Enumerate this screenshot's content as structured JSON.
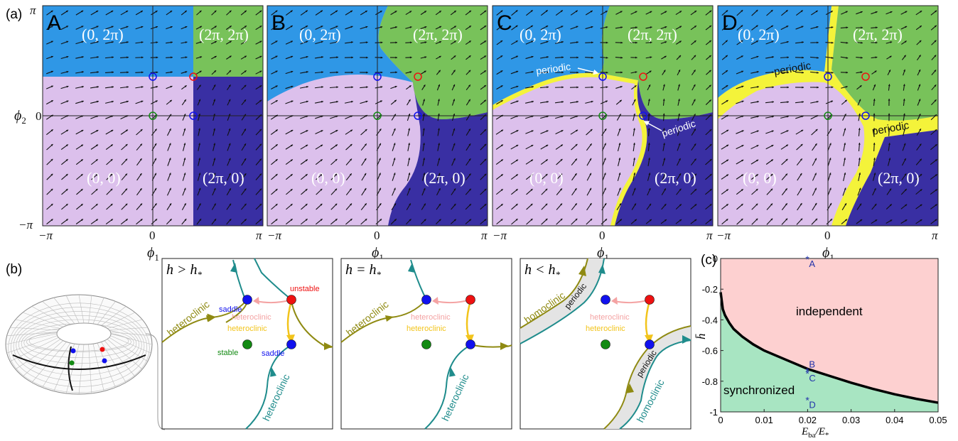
{
  "panel_labels": {
    "a": "(a)",
    "b": "(b)",
    "c": "(c)"
  },
  "panels_a": [
    {
      "letter": "A",
      "q_tl": "(0, 2π)",
      "q_tr": "(2π, 2π)",
      "q_bl": "(0, 0)",
      "q_br": "(2π, 0)",
      "periodic": []
    },
    {
      "letter": "B",
      "q_tl": "(0, 2π)",
      "q_tr": "(2π, 2π)",
      "q_bl": "(0, 0)",
      "q_br": "(2π, 0)",
      "periodic": []
    },
    {
      "letter": "C",
      "q_tl": "(0, 2π)",
      "q_tr": "(2π, 2π)",
      "q_bl": "(0, 0)",
      "q_br": "(2π, 0)",
      "periodic": [
        "periodic",
        "periodic"
      ]
    },
    {
      "letter": "D",
      "q_tl": "(0, 2π)",
      "q_tr": "(2π, 2π)",
      "q_bl": "(0, 0)",
      "q_br": "(2π, 0)",
      "periodic": [
        "periodic",
        "periodic"
      ]
    }
  ],
  "axes_a": {
    "x_ticks": [
      "−π",
      "0",
      "π"
    ],
    "y_ticks": [
      "−π",
      "0",
      "π"
    ],
    "x_label": "ϕ",
    "x_label_sub": "1",
    "y_label": "ϕ",
    "y_label_sub": "2"
  },
  "panels_b": [
    {
      "title": "h > h",
      "title_sub": "*",
      "labels": [
        "heteroclinic",
        "saddle",
        "unstable",
        "heteroclinic",
        "heteroclinic",
        "stable",
        "saddle",
        "heteroclinic"
      ]
    },
    {
      "title": "h = h",
      "title_sub": "*",
      "labels": [
        "heteroclinic",
        "heteroclinic",
        "heteroclinic",
        "heteroclinic"
      ]
    },
    {
      "title": "h < h",
      "title_sub": "*",
      "labels": [
        "homoclinic",
        "periodic",
        "heteroclinic",
        "heteroclinic",
        "periodic",
        "homoclinic"
      ]
    }
  ],
  "colors": {
    "tl_region": "#2f97e6",
    "tr_region": "#78c25a",
    "bl_region": "#dcc0ec",
    "br_region": "#392fa3",
    "periodic": "#f4f33a",
    "olive": "#8f8a12",
    "teal": "#1f8c8c",
    "pink": "#f4a3a3",
    "yellow": "#f2c41c",
    "saddle": "#1111ee",
    "unstable": "#ee1111",
    "stable": "#138a13",
    "independent": "#fdd0d0",
    "synchronized": "#a8e5c2"
  },
  "chart_data": {
    "type": "area",
    "title": "",
    "xlabel": "E",
    "xlabel_sub": "ba",
    "xlabel_den": "E",
    "xlabel_den_sub": "*",
    "ylabel": "h̄",
    "xlim": [
      0,
      0.05
    ],
    "ylim": [
      -1,
      0
    ],
    "x_ticks": [
      "0",
      "0.01",
      "0.02",
      "0.03",
      "0.04",
      "0.05"
    ],
    "y_ticks": [
      "0",
      "-0.2",
      "-0.4",
      "-0.6",
      "-0.8",
      "-1"
    ],
    "boundary": {
      "x": [
        0,
        0.0005,
        0.001,
        0.002,
        0.003,
        0.005,
        0.0075,
        0.01,
        0.015,
        0.02,
        0.025,
        0.03,
        0.035,
        0.04,
        0.045,
        0.05
      ],
      "y": [
        -0.22,
        -0.33,
        -0.37,
        -0.42,
        -0.46,
        -0.51,
        -0.56,
        -0.6,
        -0.66,
        -0.72,
        -0.765,
        -0.81,
        -0.85,
        -0.885,
        -0.915,
        -0.94
      ]
    },
    "regions": [
      "independent",
      "synchronized"
    ],
    "points": [
      {
        "label": "A",
        "x": 0.02,
        "y": 0
      },
      {
        "label": "B",
        "x": 0.02,
        "y": -0.73
      },
      {
        "label": "C",
        "x": 0.02,
        "y": -0.745
      },
      {
        "label": "D",
        "x": 0.02,
        "y": -0.92
      }
    ]
  }
}
